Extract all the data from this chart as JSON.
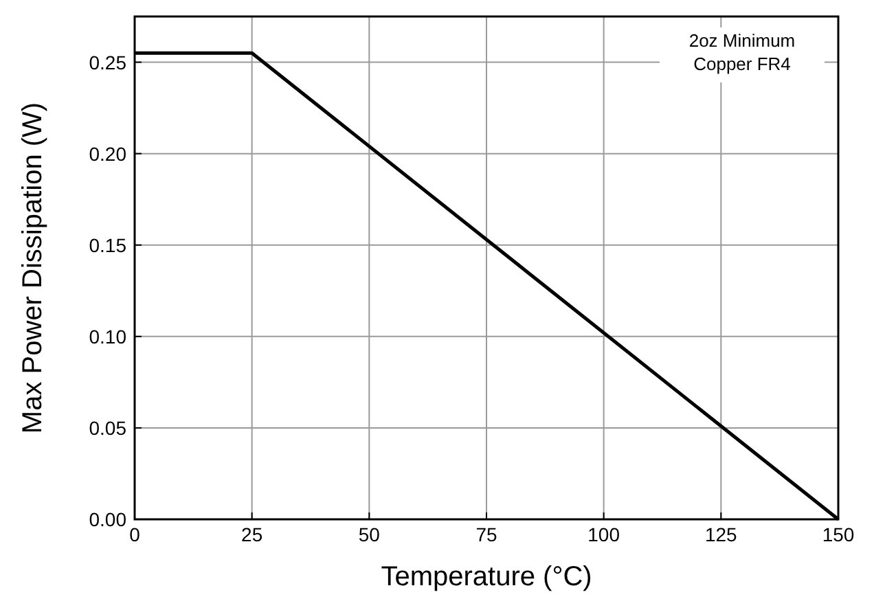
{
  "chart_data": {
    "type": "line",
    "xlabel": "Temperature (°C)",
    "ylabel": "Max Power Dissipation (W)",
    "annotations": [
      "2oz Minimum\nCopper FR4"
    ],
    "series": [
      {
        "color": "#000000",
        "x": [
          0,
          25,
          150
        ],
        "values": [
          0.255,
          0.255,
          0
        ]
      }
    ],
    "xlim": [
      0,
      150
    ],
    "xticks": [
      0,
      25,
      50,
      75,
      100,
      125,
      150
    ],
    "ylim": [
      0,
      0.275
    ],
    "yticks": [
      {
        "value": 0,
        "label": "0.00"
      },
      {
        "value": 0.05,
        "label": "0.05"
      },
      {
        "value": 0.1,
        "label": "0.10"
      },
      {
        "value": 0.15,
        "label": "0.15"
      },
      {
        "value": 0.2,
        "label": "0.20"
      },
      {
        "value": 0.25,
        "label": "0.25"
      }
    ],
    "grid": true,
    "marker": "none",
    "line_style": "solid"
  }
}
